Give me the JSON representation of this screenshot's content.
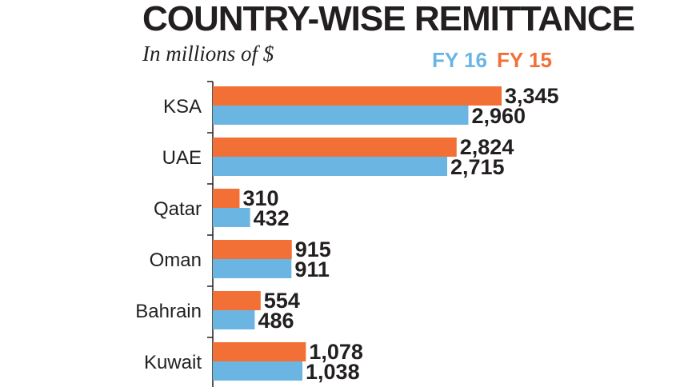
{
  "header": {
    "title": "COUNTRY-WISE REMITTANCE",
    "subtitle": "In millions of $"
  },
  "legend": {
    "fy16_label": "FY 16",
    "fy15_label": "FY 15"
  },
  "colors": {
    "fy15": "#f26f36",
    "fy16": "#6bb5e3",
    "text": "#231f20",
    "axis": "#231f20"
  },
  "chart_data": {
    "type": "bar",
    "orientation": "horizontal",
    "title": "COUNTRY-WISE REMITTANCE",
    "subtitle": "In millions of $",
    "categories": [
      "KSA",
      "UAE",
      "Qatar",
      "Oman",
      "Bahrain",
      "Kuwait"
    ],
    "series": [
      {
        "name": "FY 15",
        "values": [
          3345,
          2824,
          310,
          915,
          554,
          1078
        ],
        "labels": [
          "3,345",
          "2,824",
          "310",
          "915",
          "554",
          "1,078"
        ]
      },
      {
        "name": "FY 16",
        "values": [
          2960,
          2715,
          432,
          911,
          486,
          1038
        ],
        "labels": [
          "2,960",
          "2,715",
          "432",
          "911",
          "486",
          "1,038"
        ]
      }
    ],
    "xlim": [
      0,
      3345
    ],
    "grid": false,
    "legend_position": "top-right"
  }
}
